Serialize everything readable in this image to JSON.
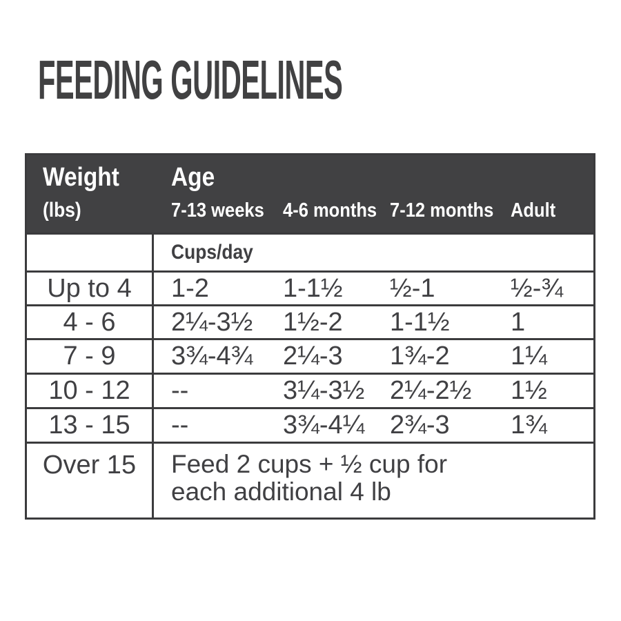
{
  "title": "FEEDING GUIDELINES",
  "table": {
    "header": {
      "weight_label": "Weight",
      "weight_sub": "(lbs)",
      "age_label": "Age",
      "age_columns": [
        "7-13 weeks",
        "4-6 months",
        "7-12 months",
        "Adult"
      ]
    },
    "units_label": "Cups/day",
    "rows": [
      {
        "weight": "Up to 4",
        "values": [
          "1-2",
          "1-1½",
          "½-1",
          "½-¾"
        ]
      },
      {
        "weight": "4 - 6",
        "values": [
          "2¼-3½",
          "1½-2",
          "1-1½",
          "1"
        ]
      },
      {
        "weight": "7 - 9",
        "values": [
          "3¾-4¾",
          "2¼-3",
          "1¾-2",
          "1¼"
        ]
      },
      {
        "weight": "10 - 12",
        "values": [
          "--",
          "3¼-3½",
          "2¼-2½",
          "1½"
        ]
      },
      {
        "weight": "13 - 15",
        "values": [
          "--",
          "3¾-4¼",
          "2¾-3",
          "1¾"
        ]
      }
    ],
    "footer": {
      "weight": "Over 15",
      "note_line1": "Feed 2 cups + ½ cup for",
      "note_line2": "each additional 4 lb"
    }
  },
  "colors": {
    "header_background": "#414143",
    "border": "#3b3b3d",
    "text": "#404043",
    "title": "#414142",
    "header_text": "#ffffff"
  }
}
